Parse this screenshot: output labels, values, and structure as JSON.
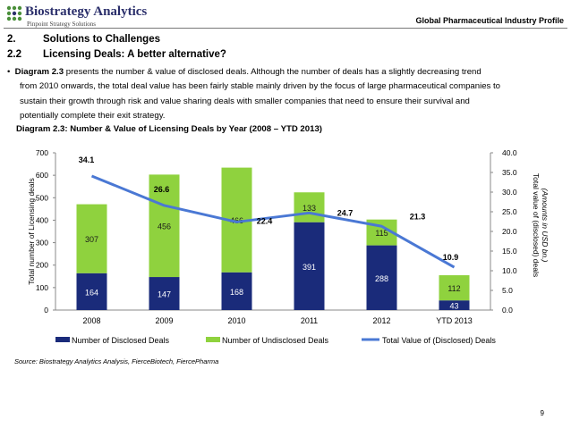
{
  "header": {
    "brand_name": "Biostrategy Analytics",
    "brand_tagline": "Pinpoint Strategy Solutions",
    "doc_title": "Global Pharmaceutical Industry Profile"
  },
  "section": {
    "number": "2.",
    "title": "Solutions to Challenges"
  },
  "subsection": {
    "number": "2.2",
    "title": "Licensing Deals: A better alternative?"
  },
  "body": {
    "bullet": "•",
    "lead_bold": "Diagram 2.3",
    "line1_rest": " presents the number & value of disclosed deals. Although the number of deals has a slightly decreasing trend",
    "line2": "from 2010 onwards, the total deal value has been fairly stable mainly driven by the focus of large pharmaceutical companies to",
    "line3": "sustain their growth through risk and value sharing deals with smaller companies that need to ensure their survival and",
    "line4": "potentially complete their exit strategy."
  },
  "diagram_title": "Diagram 2.3: Number & Value of Licensing Deals by Year (2008 – YTD 2013)",
  "source": "Source: Biostrategy Analytics Analysis, FierceBiotech, FiercePharma",
  "page_number": "9",
  "colors": {
    "disclosed": "#1a2b7a",
    "undisclosed": "#8fd23e",
    "line": "#4a78d4",
    "text_in_dark": "#ffffff"
  },
  "chart_data": {
    "type": "bar",
    "stacked": true,
    "categories": [
      "2008",
      "2009",
      "2010",
      "2011",
      "2012",
      "YTD 2013"
    ],
    "series": [
      {
        "name": "Number of Disclosed Deals",
        "values": [
          164,
          147,
          168,
          391,
          288,
          43
        ],
        "axis": "left"
      },
      {
        "name": "Number of Undisclosed Deals",
        "values": [
          307,
          456,
          466,
          133,
          115,
          112
        ],
        "axis": "left"
      }
    ],
    "line_series": {
      "name": "Total Value of (Disclosed) Deals",
      "values": [
        34.1,
        26.6,
        22.4,
        24.7,
        21.3,
        10.9
      ],
      "axis": "right",
      "labels": [
        "34.1",
        "26.6",
        "22.4",
        "24.7",
        "21.3",
        "10.9"
      ]
    },
    "bar_labels": {
      "disclosed": [
        "164",
        "147",
        "168",
        "391",
        "288",
        "43"
      ],
      "undisclosed": [
        "307",
        "456",
        "466",
        "133",
        "115",
        "112"
      ]
    },
    "ylabel_left": "Total number of Licensing deals",
    "ylabel_right_line1": "Total value of (disclosed) deals",
    "ylabel_right_line2": "(Amounts in USD bn.)",
    "ylim_left": [
      0,
      700
    ],
    "ylim_right": [
      0,
      40
    ],
    "left_ticks": [
      "0",
      "100",
      "200",
      "300",
      "400",
      "500",
      "600",
      "700"
    ],
    "right_ticks": [
      "0.0",
      "5.0",
      "10.0",
      "15.0",
      "20.0",
      "25.0",
      "30.0",
      "35.0",
      "40.0"
    ],
    "legend": [
      "Number of Disclosed Deals",
      "Number of Undisclosed Deals",
      "Total Value of (Disclosed) Deals"
    ],
    "legend_position": "bottom",
    "grid": false
  }
}
